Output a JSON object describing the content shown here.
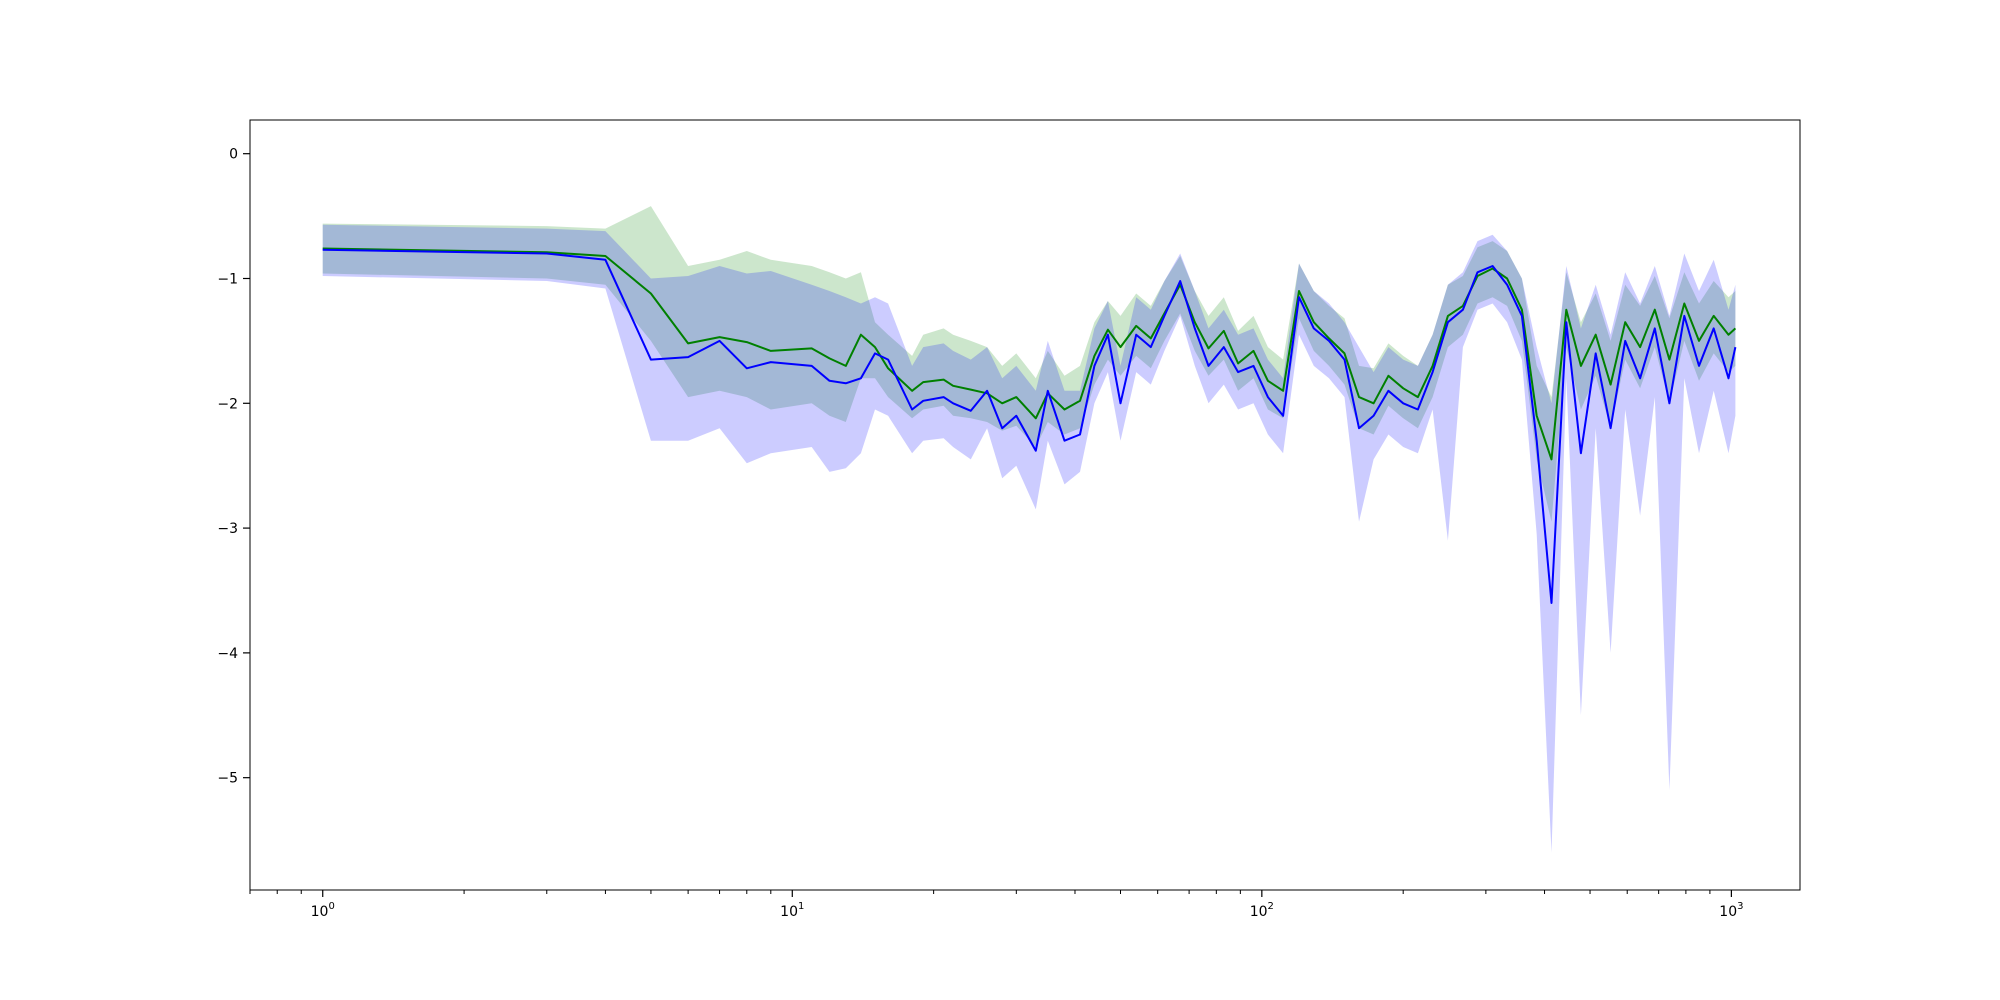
{
  "chart_data": {
    "type": "line",
    "title": "",
    "xlabel": "",
    "ylabel": "",
    "xscale": "log",
    "xlim": [
      0.7,
      1400
    ],
    "ylim": [
      -5.9,
      0.27
    ],
    "grid": false,
    "x_ticks": [
      {
        "value": 1,
        "base": "10",
        "exp": "0"
      },
      {
        "value": 10,
        "base": "10",
        "exp": "1"
      },
      {
        "value": 100,
        "base": "10",
        "exp": "2"
      },
      {
        "value": 1000,
        "base": "10",
        "exp": "3"
      }
    ],
    "y_ticks": [
      {
        "value": 0,
        "label": "0"
      },
      {
        "value": -1,
        "label": "−1"
      },
      {
        "value": -2,
        "label": "−2"
      },
      {
        "value": -3,
        "label": "−3"
      },
      {
        "value": -4,
        "label": "−4"
      },
      {
        "value": -5,
        "label": "−5"
      }
    ],
    "x": [
      1,
      3,
      4,
      5,
      6,
      7,
      8,
      9,
      11,
      12,
      13,
      14,
      15,
      16,
      18,
      19,
      21,
      22,
      24,
      26,
      28,
      30,
      33,
      35,
      38,
      41,
      44,
      47,
      50,
      54,
      58,
      62,
      67,
      72,
      77,
      83,
      89,
      96,
      103,
      111,
      120,
      129,
      139,
      150,
      161,
      173,
      186,
      200,
      215,
      231,
      249,
      268,
      288,
      310,
      333,
      358,
      385,
      414,
      445,
      478,
      514,
      553,
      594,
      639,
      687,
      738,
      794,
      853,
      917,
      986,
      1020
    ],
    "series": [
      {
        "color": "#008000",
        "fill_color": "rgba(0,128,0,0.2)",
        "values": [
          -0.76,
          -0.79,
          -0.82,
          -1.12,
          -1.52,
          -1.47,
          -1.51,
          -1.58,
          -1.56,
          -1.64,
          -1.7,
          -1.45,
          -1.55,
          -1.72,
          -1.9,
          -1.83,
          -1.81,
          -1.86,
          -1.89,
          -1.92,
          -2.0,
          -1.95,
          -2.12,
          -1.92,
          -2.05,
          -1.98,
          -1.62,
          -1.41,
          -1.55,
          -1.38,
          -1.48,
          -1.28,
          -1.05,
          -1.35,
          -1.56,
          -1.42,
          -1.68,
          -1.58,
          -1.82,
          -1.9,
          -1.1,
          -1.35,
          -1.48,
          -1.6,
          -1.95,
          -2.0,
          -1.78,
          -1.88,
          -1.95,
          -1.7,
          -1.3,
          -1.22,
          -0.98,
          -0.92,
          -1.0,
          -1.25,
          -2.1,
          -2.45,
          -1.25,
          -1.7,
          -1.45,
          -1.85,
          -1.35,
          -1.55,
          -1.25,
          -1.65,
          -1.2,
          -1.5,
          -1.3,
          -1.45,
          -1.4
        ],
        "lower": [
          -0.96,
          -1.0,
          -1.05,
          -1.5,
          -1.95,
          -1.9,
          -1.95,
          -2.05,
          -2.0,
          -2.1,
          -2.15,
          -1.8,
          -1.8,
          -1.95,
          -2.12,
          -2.05,
          -2.02,
          -2.1,
          -2.12,
          -2.15,
          -2.22,
          -2.18,
          -2.35,
          -2.15,
          -2.25,
          -2.2,
          -1.85,
          -1.65,
          -1.78,
          -1.62,
          -1.72,
          -1.5,
          -1.28,
          -1.58,
          -1.78,
          -1.65,
          -1.9,
          -1.8,
          -2.05,
          -2.12,
          -1.32,
          -1.58,
          -1.7,
          -1.85,
          -2.2,
          -2.25,
          -2.02,
          -2.12,
          -2.2,
          -1.95,
          -1.55,
          -1.45,
          -1.2,
          -1.15,
          -1.22,
          -1.5,
          -2.45,
          -2.95,
          -1.55,
          -2.05,
          -1.78,
          -2.2,
          -1.65,
          -1.88,
          -1.55,
          -2.0,
          -1.5,
          -1.82,
          -1.6,
          -1.75,
          -1.7
        ],
        "upper": [
          -0.56,
          -0.58,
          -0.6,
          -0.42,
          -0.9,
          -0.85,
          -0.78,
          -0.85,
          -0.9,
          -0.95,
          -1.0,
          -0.95,
          -1.35,
          -1.45,
          -1.62,
          -1.45,
          -1.4,
          -1.45,
          -1.5,
          -1.55,
          -1.7,
          -1.6,
          -1.8,
          -1.58,
          -1.78,
          -1.7,
          -1.35,
          -1.18,
          -1.3,
          -1.12,
          -1.22,
          -1.02,
          -0.82,
          -1.1,
          -1.3,
          -1.15,
          -1.42,
          -1.3,
          -1.55,
          -1.65,
          -0.88,
          -1.1,
          -1.22,
          -1.32,
          -1.7,
          -1.72,
          -1.52,
          -1.62,
          -1.7,
          -1.45,
          -1.05,
          -0.98,
          -0.75,
          -0.7,
          -0.78,
          -1.0,
          -1.7,
          -1.95,
          -0.95,
          -1.35,
          -1.12,
          -1.5,
          -1.05,
          -1.22,
          -0.98,
          -1.32,
          -0.95,
          -1.2,
          -1.02,
          -1.15,
          -1.1
        ]
      },
      {
        "color": "#0000ff",
        "fill_color": "rgba(0,0,255,0.2)",
        "values": [
          -0.77,
          -0.8,
          -0.85,
          -1.65,
          -1.63,
          -1.5,
          -1.72,
          -1.67,
          -1.7,
          -1.82,
          -1.84,
          -1.8,
          -1.6,
          -1.65,
          -2.05,
          -1.98,
          -1.95,
          -2.0,
          -2.06,
          -1.9,
          -2.2,
          -2.1,
          -2.38,
          -1.9,
          -2.3,
          -2.25,
          -1.7,
          -1.45,
          -2.0,
          -1.45,
          -1.55,
          -1.3,
          -1.02,
          -1.4,
          -1.7,
          -1.55,
          -1.75,
          -1.7,
          -1.95,
          -2.1,
          -1.15,
          -1.4,
          -1.5,
          -1.65,
          -2.2,
          -2.1,
          -1.9,
          -2.0,
          -2.05,
          -1.75,
          -1.35,
          -1.25,
          -0.95,
          -0.9,
          -1.05,
          -1.3,
          -2.3,
          -3.6,
          -1.35,
          -2.4,
          -1.6,
          -2.2,
          -1.5,
          -1.8,
          -1.4,
          -2.0,
          -1.3,
          -1.7,
          -1.4,
          -1.8,
          -1.55
        ],
        "lower": [
          -0.98,
          -1.02,
          -1.08,
          -2.3,
          -2.3,
          -2.2,
          -2.48,
          -2.4,
          -2.35,
          -2.55,
          -2.52,
          -2.4,
          -2.05,
          -2.1,
          -2.4,
          -2.3,
          -2.28,
          -2.35,
          -2.45,
          -2.2,
          -2.6,
          -2.5,
          -2.85,
          -2.3,
          -2.65,
          -2.55,
          -2.0,
          -1.75,
          -2.3,
          -1.75,
          -1.85,
          -1.58,
          -1.3,
          -1.7,
          -2.0,
          -1.85,
          -2.05,
          -2.0,
          -2.25,
          -2.4,
          -1.45,
          -1.7,
          -1.8,
          -1.95,
          -2.95,
          -2.45,
          -2.25,
          -2.35,
          -2.4,
          -2.05,
          -3.1,
          -1.55,
          -1.25,
          -1.2,
          -1.35,
          -1.65,
          -3.05,
          -5.6,
          -1.8,
          -4.5,
          -2.2,
          -4.0,
          -2.05,
          -2.9,
          -1.95,
          -5.1,
          -1.8,
          -2.4,
          -1.9,
          -2.4,
          -2.1
        ],
        "upper": [
          -0.57,
          -0.6,
          -0.62,
          -1.0,
          -0.98,
          -0.9,
          -0.96,
          -0.94,
          -1.05,
          -1.1,
          -1.15,
          -1.2,
          -1.15,
          -1.2,
          -1.7,
          -1.55,
          -1.52,
          -1.58,
          -1.65,
          -1.55,
          -1.8,
          -1.7,
          -1.9,
          -1.5,
          -1.9,
          -1.9,
          -1.4,
          -1.18,
          -1.7,
          -1.15,
          -1.25,
          -1.02,
          -0.8,
          -1.1,
          -1.4,
          -1.25,
          -1.45,
          -1.4,
          -1.65,
          -1.8,
          -0.88,
          -1.1,
          -1.2,
          -1.35,
          -1.55,
          -1.75,
          -1.55,
          -1.65,
          -1.7,
          -1.45,
          -1.05,
          -0.95,
          -0.7,
          -0.65,
          -0.78,
          -1.0,
          -1.55,
          -2.0,
          -0.9,
          -1.4,
          -1.05,
          -1.45,
          -0.95,
          -1.2,
          -0.9,
          -1.3,
          -0.8,
          -1.1,
          -0.85,
          -1.25,
          -1.05
        ]
      }
    ]
  }
}
